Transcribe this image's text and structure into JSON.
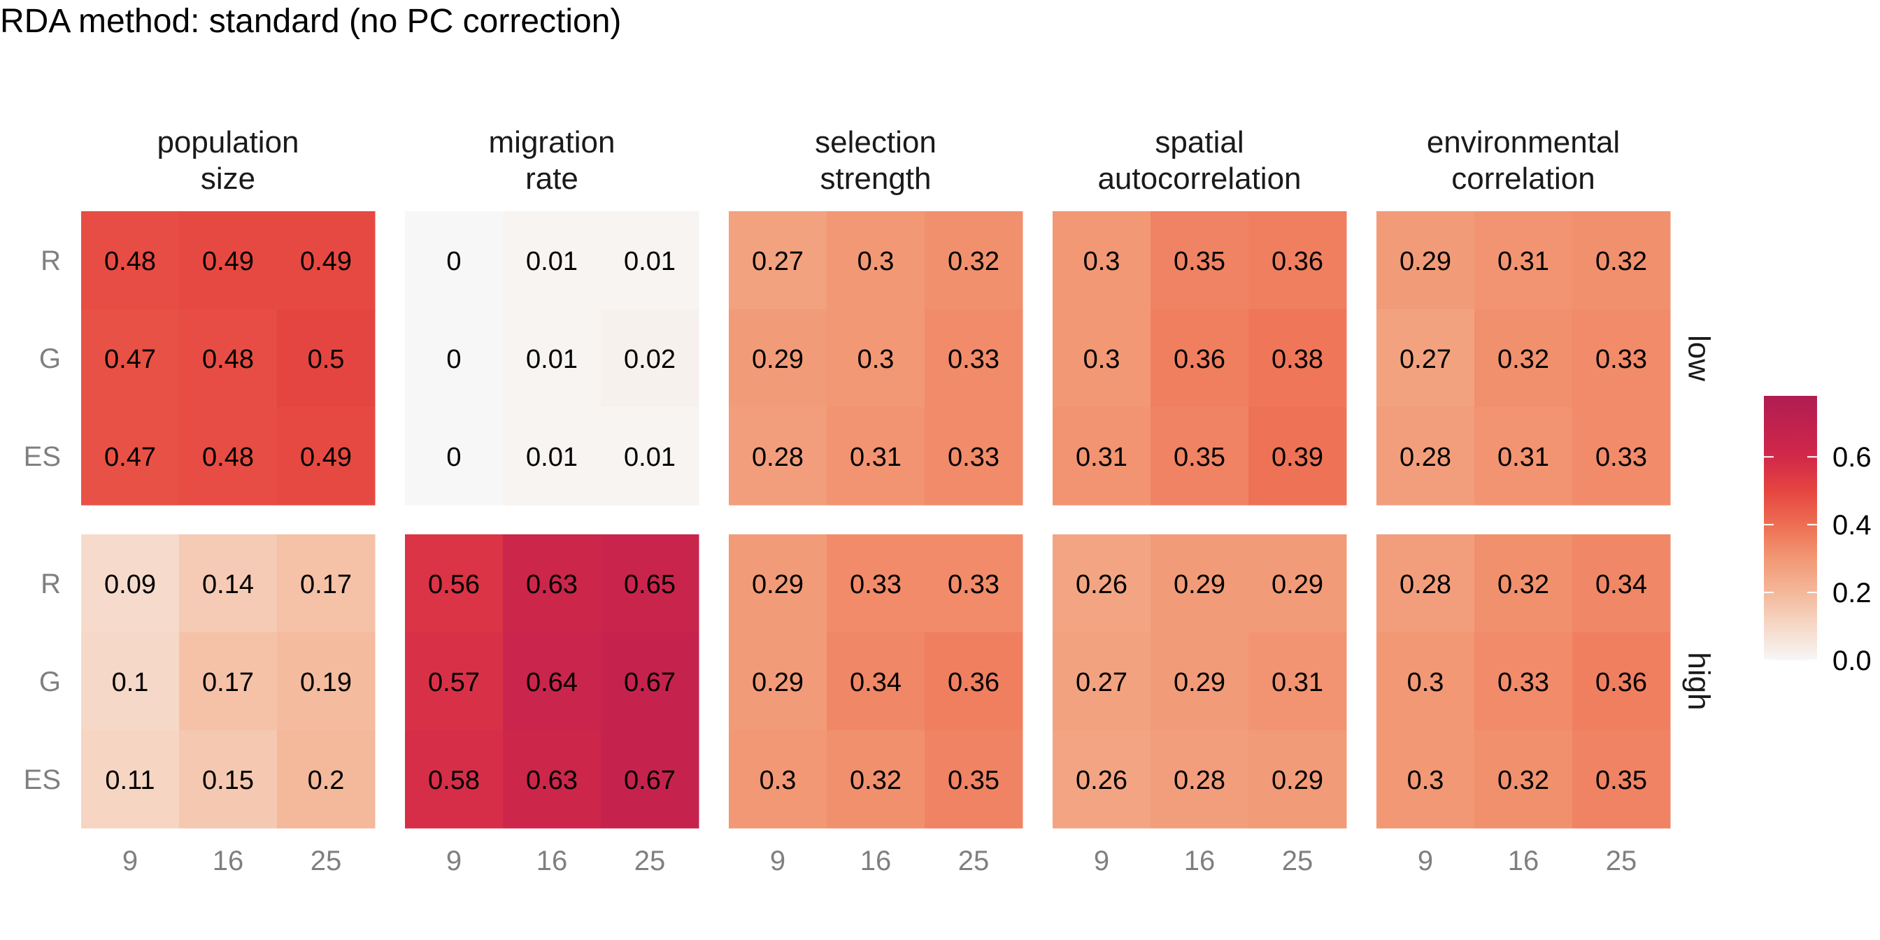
{
  "chart_data": {
    "type": "heatmap",
    "title": "RDA method: standard (no PC correction)",
    "x_categories": [
      "9",
      "16",
      "25"
    ],
    "y_categories": [
      "R",
      "G",
      "ES"
    ],
    "rows": [
      "low",
      "high"
    ],
    "panels": [
      {
        "title_lines": [
          "population",
          "size"
        ],
        "values": {
          "low": [
            [
              0.48,
              0.49,
              0.49
            ],
            [
              0.47,
              0.48,
              0.5
            ],
            [
              0.47,
              0.48,
              0.49
            ]
          ],
          "high": [
            [
              0.09,
              0.14,
              0.17
            ],
            [
              0.1,
              0.17,
              0.19
            ],
            [
              0.11,
              0.15,
              0.2
            ]
          ]
        }
      },
      {
        "title_lines": [
          "migration",
          "rate"
        ],
        "values": {
          "low": [
            [
              0,
              0.01,
              0.01
            ],
            [
              0,
              0.01,
              0.02
            ],
            [
              0,
              0.01,
              0.01
            ]
          ],
          "high": [
            [
              0.56,
              0.63,
              0.65
            ],
            [
              0.57,
              0.64,
              0.67
            ],
            [
              0.58,
              0.63,
              0.67
            ]
          ]
        }
      },
      {
        "title_lines": [
          "selection",
          "strength"
        ],
        "values": {
          "low": [
            [
              0.27,
              0.3,
              0.32
            ],
            [
              0.29,
              0.3,
              0.33
            ],
            [
              0.28,
              0.31,
              0.33
            ]
          ],
          "high": [
            [
              0.29,
              0.33,
              0.33
            ],
            [
              0.29,
              0.34,
              0.36
            ],
            [
              0.3,
              0.32,
              0.35
            ]
          ]
        }
      },
      {
        "title_lines": [
          "spatial",
          "autocorrelation"
        ],
        "values": {
          "low": [
            [
              0.3,
              0.35,
              0.36
            ],
            [
              0.3,
              0.36,
              0.38
            ],
            [
              0.31,
              0.35,
              0.39
            ]
          ],
          "high": [
            [
              0.26,
              0.29,
              0.29
            ],
            [
              0.27,
              0.29,
              0.31
            ],
            [
              0.26,
              0.28,
              0.29
            ]
          ]
        }
      },
      {
        "title_lines": [
          "environmental",
          "correlation"
        ],
        "values": {
          "low": [
            [
              0.29,
              0.31,
              0.32
            ],
            [
              0.27,
              0.32,
              0.33
            ],
            [
              0.28,
              0.31,
              0.33
            ]
          ],
          "high": [
            [
              0.28,
              0.32,
              0.34
            ],
            [
              0.3,
              0.33,
              0.36
            ],
            [
              0.3,
              0.32,
              0.35
            ]
          ]
        }
      }
    ],
    "legend": {
      "ticks": [
        0.0,
        0.2,
        0.4,
        0.6
      ],
      "tick_labels": [
        "0.0",
        "0.2",
        "0.4",
        "0.6"
      ],
      "range": [
        0,
        0.78
      ],
      "placement": "right"
    },
    "color_scale": {
      "stops": [
        {
          "value": 0.0,
          "color": "#f7f7f7"
        },
        {
          "value": 0.1,
          "color": "#f6d8c8"
        },
        {
          "value": 0.2,
          "color": "#f4b89a"
        },
        {
          "value": 0.3,
          "color": "#f29874"
        },
        {
          "value": 0.4,
          "color": "#ee6e52"
        },
        {
          "value": 0.5,
          "color": "#e54540"
        },
        {
          "value": 0.6,
          "color": "#d2284a"
        },
        {
          "value": 0.78,
          "color": "#b01c52"
        }
      ]
    }
  }
}
